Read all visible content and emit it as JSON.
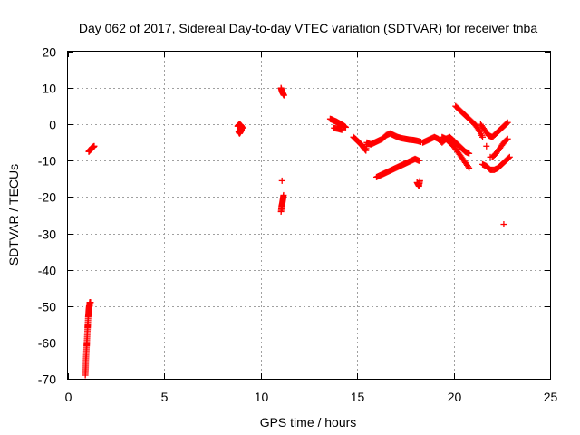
{
  "chart_data": {
    "type": "scatter",
    "title": "Day 062 of 2017, Sidereal Day-to-day VTEC variation (SDTVAR) for receiver tnba",
    "xlabel": "GPS time / hours",
    "ylabel": "SDTVAR / TECUs",
    "xlim": [
      0,
      25
    ],
    "ylim": [
      -70,
      20
    ],
    "xticks": [
      0,
      5,
      10,
      15,
      20,
      25
    ],
    "yticks": [
      20,
      10,
      0,
      -10,
      -20,
      -30,
      -40,
      -50,
      -60,
      -70
    ],
    "grid": true,
    "marker": "+",
    "series": [
      {
        "name": "SDTVAR",
        "color": "#ff0000",
        "x": [
          0.9,
          0.92,
          0.93,
          0.95,
          0.97,
          0.98,
          1.0,
          1.02,
          1.03,
          1.05,
          1.07,
          1.08,
          1.1,
          1.12,
          1.13,
          1.15,
          1.17,
          1.08,
          1.12,
          1.16,
          1.2,
          1.24,
          1.28,
          1.32,
          1.36,
          8.8,
          8.85,
          8.9,
          8.95,
          9.0,
          9.05,
          8.85,
          8.9,
          8.95,
          9.0,
          11.05,
          11.1,
          11.15,
          11.2,
          11.1,
          11.05,
          11.08,
          11.12,
          11.15,
          11.18,
          11.1,
          13.6,
          13.7,
          13.8,
          13.9,
          14.0,
          14.1,
          14.2,
          14.3,
          14.4,
          13.8,
          14.0,
          14.2,
          14.8,
          14.95,
          15.1,
          15.25,
          15.35,
          15.45,
          15.5,
          15.7,
          15.9,
          16.1,
          16.3,
          16.5,
          16.7,
          16.9,
          17.1,
          17.3,
          17.5,
          17.7,
          17.9,
          18.1,
          18.3,
          16.0,
          16.2,
          16.4,
          16.6,
          16.8,
          17.0,
          17.2,
          17.4,
          17.6,
          17.8,
          18.0,
          18.2,
          18.1,
          18.2,
          18.25,
          18.4,
          18.6,
          18.8,
          19.0,
          19.2,
          19.4,
          19.6,
          19.8,
          20.0,
          20.2,
          20.4,
          20.6,
          20.8,
          19.4,
          19.6,
          19.8,
          20.0,
          20.2,
          20.4,
          20.6,
          20.8,
          20.1,
          20.3,
          20.5,
          20.7,
          20.9,
          21.1,
          21.3,
          21.5,
          21.7,
          21.9,
          21.4,
          21.6,
          21.8,
          22.0,
          22.2,
          22.4,
          22.6,
          22.8,
          21.5,
          21.7,
          21.9,
          22.1,
          22.3,
          22.5,
          22.7,
          22.9,
          22.0,
          22.2,
          22.4,
          22.6,
          22.8,
          22.6
        ],
        "y": [
          -69,
          -67,
          -65,
          -63,
          -61,
          -60,
          -58,
          -56,
          -55,
          -53,
          -52,
          -51,
          -50,
          -50,
          -49,
          -49,
          -49,
          -7.5,
          -7.2,
          -7.0,
          -6.8,
          -6.5,
          -6.3,
          -6.2,
          -6.0,
          -0.5,
          -0.2,
          0.0,
          -0.2,
          -0.5,
          -1.0,
          -2.0,
          -2.5,
          -2.0,
          -1.5,
          10.0,
          9.0,
          8.5,
          8.0,
          -15.5,
          -24.0,
          -22.5,
          -21.5,
          -20.5,
          -19.5,
          -23.0,
          1.5,
          1.3,
          1.0,
          0.8,
          0.5,
          0.2,
          -0.1,
          -0.4,
          -0.8,
          -1.0,
          -1.2,
          -1.5,
          -3.5,
          -4.2,
          -5.0,
          -5.8,
          -6.5,
          -7.2,
          -5.0,
          -5.5,
          -5.0,
          -4.5,
          -4.0,
          -3.0,
          -2.5,
          -3.0,
          -3.5,
          -3.8,
          -4.0,
          -4.2,
          -4.3,
          -4.5,
          -4.8,
          -14.5,
          -14.0,
          -13.5,
          -13.0,
          -12.5,
          -12.0,
          -11.5,
          -11.0,
          -10.5,
          -10.0,
          -9.5,
          -10.0,
          -16.0,
          -17.0,
          -15.5,
          -5.0,
          -4.5,
          -4.0,
          -3.5,
          -4.0,
          -5.0,
          -4.0,
          -3.5,
          -4.5,
          -5.5,
          -6.5,
          -7.5,
          -8.0,
          -3.5,
          -4.0,
          -5.0,
          -6.0,
          -7.5,
          -9.0,
          -10.5,
          -12.0,
          5.0,
          4.0,
          3.0,
          2.0,
          1.0,
          0.0,
          -1.5,
          -3.5,
          -6.0,
          -9.0,
          0.0,
          -1.5,
          -3.0,
          -3.5,
          -2.5,
          -1.5,
          -0.5,
          0.5,
          -11.0,
          -11.5,
          -12.5,
          -12.5,
          -12.0,
          -11.0,
          -10.0,
          -9.0,
          -9.0,
          -8.0,
          -6.5,
          -5.0,
          -4.0,
          -27.5
        ]
      }
    ]
  }
}
